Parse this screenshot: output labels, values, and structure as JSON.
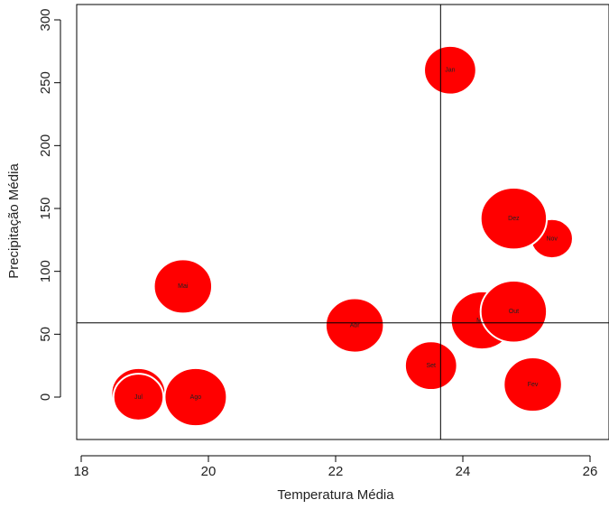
{
  "chart_data": {
    "type": "scatter",
    "xlabel": "Temperatura Média",
    "ylabel": "Precipitação Média",
    "xlim": [
      18,
      26
    ],
    "ylim": [
      -30,
      310
    ],
    "x_ticks": [
      18,
      20,
      22,
      24,
      26
    ],
    "y_ticks": [
      0,
      50,
      100,
      150,
      200,
      250,
      300
    ],
    "grid": false,
    "reference_lines": {
      "x": 23.65,
      "y": 59
    },
    "marker_color": "#ff0000",
    "points": [
      {
        "label": "Jan",
        "x": 23.8,
        "y": 260,
        "size": 0.65
      },
      {
        "label": "Fev",
        "x": 25.1,
        "y": 10,
        "size": 0.8
      },
      {
        "label": "Mar",
        "x": 24.3,
        "y": 61,
        "size": 0.9
      },
      {
        "label": "Abr",
        "x": 22.3,
        "y": 57,
        "size": 0.8
      },
      {
        "label": "Mai",
        "x": 19.6,
        "y": 88,
        "size": 0.8
      },
      {
        "label": "Jun",
        "x": 18.9,
        "y": 3,
        "size": 0.7
      },
      {
        "label": "Jul",
        "x": 18.9,
        "y": 0,
        "size": 0.6
      },
      {
        "label": "Ago",
        "x": 19.8,
        "y": 0,
        "size": 0.9
      },
      {
        "label": "Set",
        "x": 23.5,
        "y": 25,
        "size": 0.65
      },
      {
        "label": "Out",
        "x": 24.8,
        "y": 68,
        "size": 1.0
      },
      {
        "label": "Nov",
        "x": 25.4,
        "y": 126,
        "size": 0.4
      },
      {
        "label": "Dez",
        "x": 24.8,
        "y": 142,
        "size": 1.0
      }
    ]
  }
}
